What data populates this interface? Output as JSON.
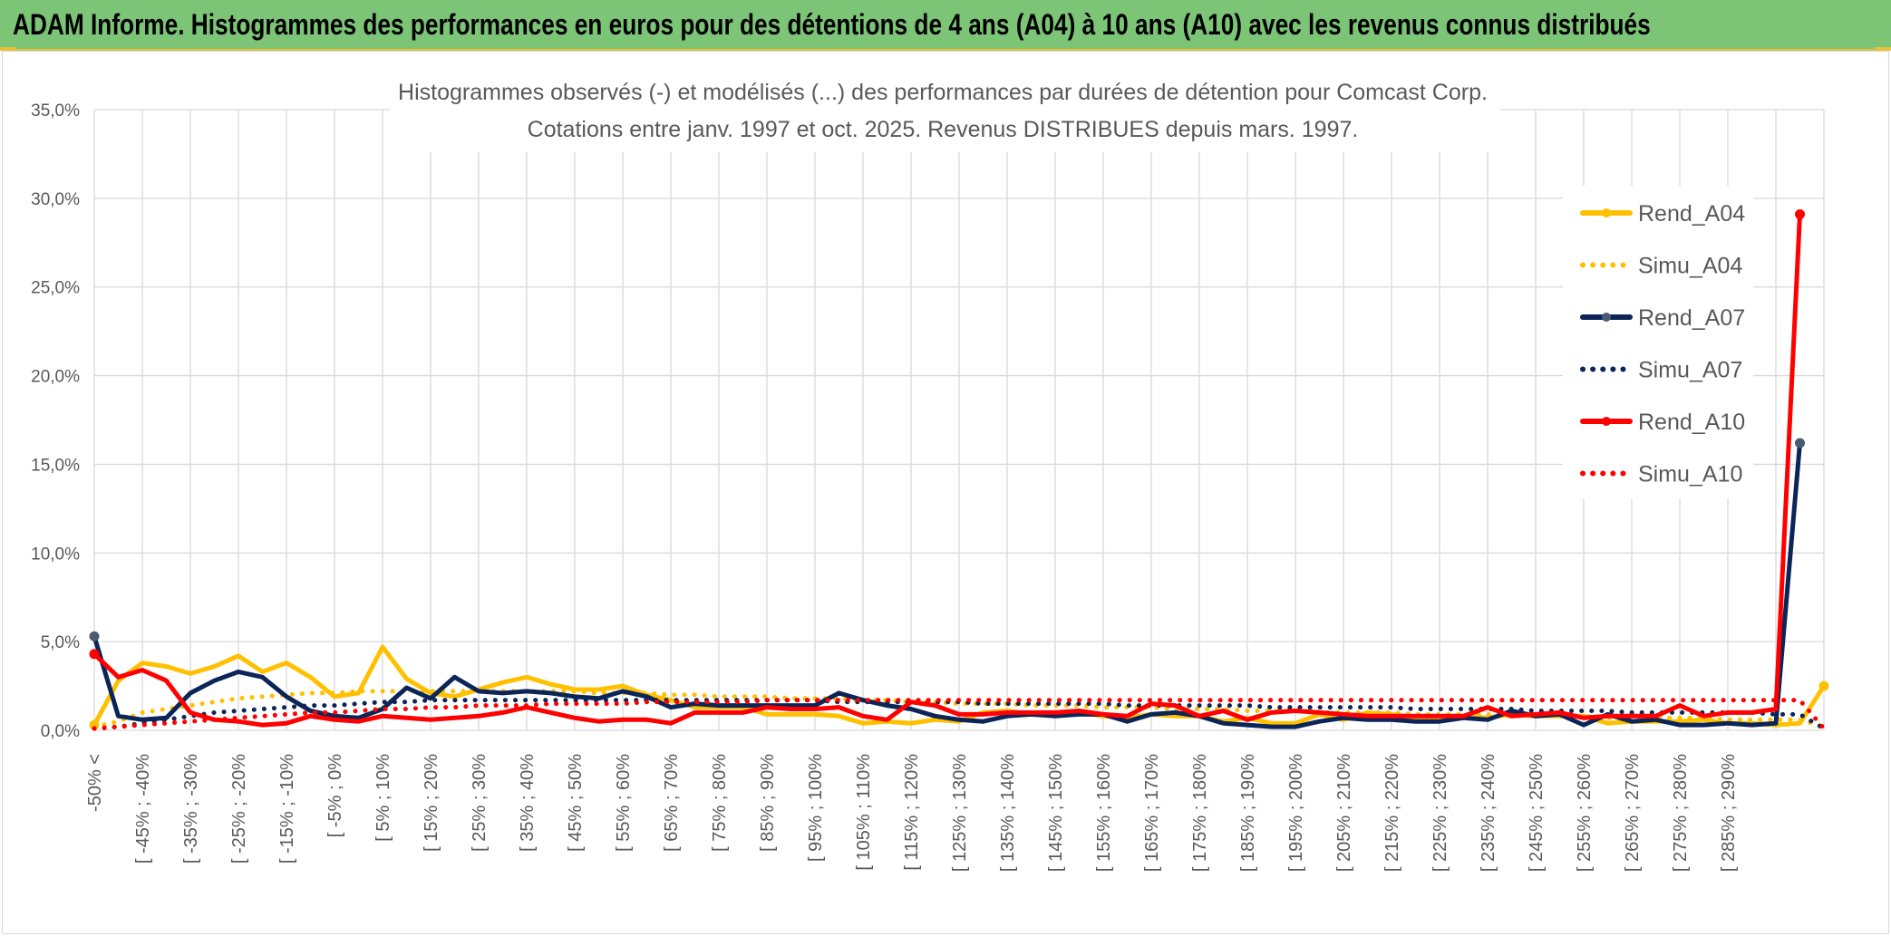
{
  "header": {
    "title": "ADAM Informe. Histogrammes des performances en euros pour des détentions de 4 ans (A04) à 10 ans (A10) avec les revenus connus distribués"
  },
  "chart_data": {
    "type": "line",
    "title": "Histogrammes observés (-) et modélisés (...) des performances par durées de détention pour Comcast Corp.",
    "subtitle": "Cotations entre janv. 1997 et oct. 2025. Revenus DISTRIBUES depuis mars. 1997.",
    "xlabel": "",
    "ylabel": "",
    "ylim": [
      0,
      35
    ],
    "yticks": [
      "0,0%",
      "5,0%",
      "10,0%",
      "15,0%",
      "20,0%",
      "25,0%",
      "30,0%",
      "35,0%"
    ],
    "grid": true,
    "legend_position": "right",
    "tick_labels": [
      "-50% <",
      "[ -45% ; -40%",
      "[ -35% ; -30%",
      "[ -25% ; -20%",
      "[ -15% ; -10%",
      "[ -5% ; 0%",
      "[ 5% ; 10%",
      "[ 15% ; 20%",
      "[ 25% ; 30%",
      "[ 35% ; 40%",
      "[ 45% ; 50%",
      "[ 55% ; 60%",
      "[ 65% ; 70%",
      "[ 75% ; 80%",
      "[ 85% ; 90%",
      "[ 95% ; 100%",
      "[ 105% ; 110%",
      "[ 115% ; 120%",
      "[ 125% ; 130%",
      "[ 135% ; 140%",
      "[ 145% ; 150%",
      "[ 155% ; 160%",
      "[ 165% ; 170%",
      "[ 175% ; 180%",
      "[ 185% ; 190%",
      "[ 195% ; 200%",
      "[ 205% ; 210%",
      "[ 215% ; 220%",
      "[ 225% ; 230%",
      "[ 235% ; 240%",
      "[ 245% ; 250%",
      "[ 255% ; 260%",
      "[ 265% ; 270%",
      "[ 275% ; 280%",
      "[ 285% ; 290%"
    ],
    "series": [
      {
        "name": "Rend_A04",
        "color": "#ffc000",
        "style": "solid",
        "values": [
          0.3,
          2.8,
          3.8,
          3.6,
          3.2,
          3.6,
          4.2,
          3.3,
          3.8,
          3.0,
          1.9,
          2.1,
          4.7,
          2.9,
          2.1,
          1.9,
          2.3,
          2.7,
          3.0,
          2.6,
          2.3,
          2.3,
          2.5,
          2.0,
          1.7,
          1.3,
          1.3,
          1.3,
          0.9,
          0.9,
          0.9,
          0.8,
          0.4,
          0.5,
          0.4,
          0.6,
          0.5,
          1.0,
          1.1,
          0.9,
          1.0,
          1.0,
          0.8,
          0.7,
          0.9,
          0.8,
          0.8,
          0.5,
          0.7,
          0.4,
          0.4,
          0.9,
          0.6,
          1.0,
          0.9,
          0.7,
          0.7,
          0.8,
          0.7,
          0.9,
          0.8,
          0.8,
          0.8,
          0.4,
          0.5,
          0.5,
          0.5,
          0.6,
          0.4,
          0.4,
          0.3,
          0.4,
          2.5
        ]
      },
      {
        "name": "Simu_A04",
        "color": "#ffc000",
        "style": "dotted",
        "values": [
          0.2,
          0.5,
          1.0,
          1.2,
          1.4,
          1.6,
          1.8,
          1.9,
          2.0,
          2.1,
          2.1,
          2.2,
          2.2,
          2.2,
          2.2,
          2.2,
          2.2,
          2.2,
          2.2,
          2.2,
          2.2,
          2.1,
          2.1,
          2.1,
          2.0,
          2.0,
          1.9,
          1.9,
          1.9,
          1.8,
          1.8,
          1.8,
          1.7,
          1.7,
          1.6,
          1.6,
          1.5,
          1.5,
          1.5,
          1.4,
          1.4,
          1.4,
          1.3,
          1.3,
          1.3,
          1.2,
          1.2,
          1.2,
          1.1,
          1.1,
          1.1,
          1.0,
          1.0,
          1.0,
          1.0,
          0.9,
          0.9,
          0.9,
          0.9,
          0.8,
          0.8,
          0.8,
          0.8,
          0.7,
          0.7,
          0.7,
          0.7,
          0.7,
          0.6,
          0.6,
          0.6,
          0.6,
          0.2
        ]
      },
      {
        "name": "Rend_A07",
        "color": "#0b2558",
        "style": "solid",
        "marker": "#4a5a72",
        "values": [
          5.3,
          0.8,
          0.6,
          0.7,
          2.1,
          2.8,
          3.3,
          3.0,
          1.9,
          1.1,
          0.8,
          0.7,
          1.2,
          2.4,
          1.8,
          3.0,
          2.2,
          2.1,
          2.2,
          2.1,
          1.9,
          1.8,
          2.2,
          1.9,
          1.3,
          1.5,
          1.4,
          1.4,
          1.4,
          1.4,
          1.4,
          2.1,
          1.7,
          1.4,
          1.2,
          0.8,
          0.6,
          0.5,
          0.8,
          0.9,
          0.8,
          0.9,
          0.9,
          0.5,
          0.9,
          1.0,
          0.8,
          0.4,
          0.3,
          0.2,
          0.2,
          0.5,
          0.7,
          0.6,
          0.6,
          0.5,
          0.5,
          0.7,
          0.6,
          1.1,
          0.8,
          0.9,
          0.3,
          0.9,
          0.5,
          0.6,
          0.3,
          0.3,
          0.4,
          0.3,
          0.4,
          16.2
        ]
      },
      {
        "name": "Simu_A07",
        "color": "#0b2558",
        "style": "dotted",
        "values": [
          0.1,
          0.2,
          0.4,
          0.6,
          0.8,
          1.0,
          1.1,
          1.2,
          1.3,
          1.4,
          1.4,
          1.5,
          1.6,
          1.6,
          1.7,
          1.7,
          1.7,
          1.7,
          1.7,
          1.7,
          1.7,
          1.7,
          1.7,
          1.7,
          1.7,
          1.7,
          1.7,
          1.7,
          1.7,
          1.7,
          1.7,
          1.6,
          1.6,
          1.6,
          1.6,
          1.6,
          1.6,
          1.5,
          1.5,
          1.5,
          1.5,
          1.5,
          1.5,
          1.4,
          1.4,
          1.4,
          1.4,
          1.4,
          1.4,
          1.3,
          1.3,
          1.3,
          1.3,
          1.3,
          1.3,
          1.2,
          1.2,
          1.2,
          1.2,
          1.2,
          1.1,
          1.1,
          1.1,
          1.1,
          1.0,
          1.0,
          1.0,
          1.0,
          1.0,
          1.0,
          0.9,
          0.9,
          0.1
        ]
      },
      {
        "name": "Rend_A10",
        "color": "#ff0000",
        "style": "solid",
        "values": [
          4.3,
          3.0,
          3.4,
          2.8,
          1.0,
          0.6,
          0.5,
          0.3,
          0.4,
          0.8,
          0.6,
          0.5,
          0.8,
          0.7,
          0.6,
          0.7,
          0.8,
          1.0,
          1.3,
          1.0,
          0.7,
          0.5,
          0.6,
          0.6,
          0.4,
          1.0,
          1.0,
          1.0,
          1.3,
          1.2,
          1.2,
          1.3,
          0.8,
          0.6,
          1.6,
          1.4,
          0.9,
          0.9,
          1.0,
          1.0,
          1.0,
          1.1,
          0.9,
          0.8,
          1.5,
          1.4,
          0.8,
          1.1,
          0.6,
          1.0,
          1.1,
          1.0,
          0.9,
          0.8,
          0.8,
          0.8,
          0.8,
          0.8,
          1.3,
          0.8,
          0.9,
          1.0,
          0.7,
          0.8,
          0.8,
          0.8,
          1.4,
          0.8,
          1.0,
          1.0,
          1.2,
          29.1
        ]
      },
      {
        "name": "Simu_A10",
        "color": "#ff0000",
        "style": "dotted",
        "values": [
          0.1,
          0.2,
          0.3,
          0.4,
          0.5,
          0.6,
          0.7,
          0.8,
          0.9,
          1.0,
          1.0,
          1.1,
          1.2,
          1.2,
          1.3,
          1.3,
          1.4,
          1.4,
          1.4,
          1.5,
          1.5,
          1.5,
          1.5,
          1.6,
          1.6,
          1.6,
          1.6,
          1.6,
          1.7,
          1.7,
          1.7,
          1.7,
          1.7,
          1.7,
          1.7,
          1.7,
          1.7,
          1.7,
          1.7,
          1.7,
          1.7,
          1.7,
          1.7,
          1.7,
          1.7,
          1.7,
          1.7,
          1.7,
          1.7,
          1.7,
          1.7,
          1.7,
          1.7,
          1.7,
          1.7,
          1.7,
          1.7,
          1.7,
          1.7,
          1.7,
          1.7,
          1.7,
          1.7,
          1.7,
          1.7,
          1.7,
          1.7,
          1.7,
          1.7,
          1.7,
          1.7,
          1.7,
          0.1
        ]
      }
    ]
  }
}
